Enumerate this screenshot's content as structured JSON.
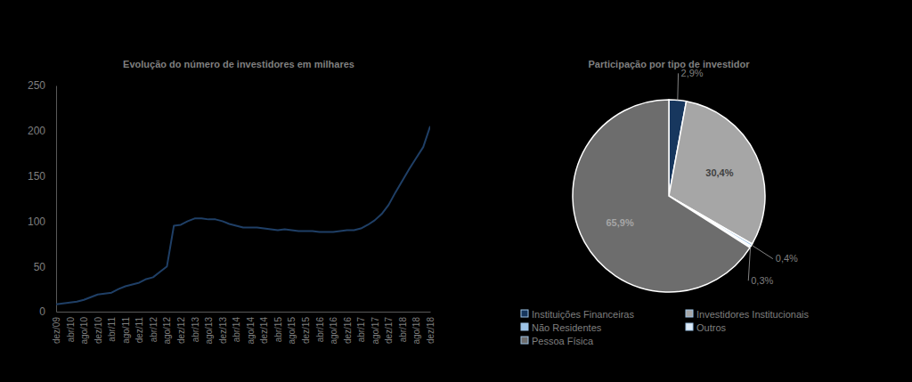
{
  "chart_data": [
    {
      "type": "line",
      "title": "Evolução do número de investidores em milhares",
      "categories": [
        "dez/09",
        null,
        "abr/10",
        null,
        "ago/10",
        null,
        "dez/10",
        null,
        "abr/11",
        null,
        "ago/11",
        null,
        "dez/11",
        null,
        "abr/12",
        null,
        "ago/12",
        null,
        "dez/12",
        null,
        "abr/13",
        null,
        "ago/13",
        null,
        "dez/13",
        null,
        "abr/14",
        null,
        "ago/14",
        null,
        "dez/14",
        null,
        "abr/15",
        null,
        "ago/15",
        null,
        "dez/15",
        null,
        "abr/16",
        null,
        "ago/16",
        null,
        "dez/16",
        null,
        "abr/17",
        null,
        "ago/17",
        null,
        "dez/17",
        null,
        "abr/18",
        null,
        "ago/18",
        null,
        "dez/18"
      ],
      "values": [
        8,
        9,
        10,
        11,
        13,
        16,
        19,
        20,
        21,
        25,
        28,
        30,
        32,
        36,
        38,
        44,
        50,
        95,
        96,
        100,
        103,
        103,
        102,
        102,
        100,
        97,
        95,
        93,
        93,
        93,
        92,
        91,
        90,
        91,
        90,
        89,
        89,
        89,
        88,
        88,
        88,
        89,
        90,
        90,
        92,
        96,
        101,
        108,
        118,
        132,
        145,
        158,
        170,
        182,
        205
      ],
      "color": "#1f3f66",
      "ylim": [
        0,
        250
      ],
      "yticks": [
        0,
        50,
        100,
        150,
        200,
        250
      ]
    },
    {
      "type": "pie",
      "title": "Participação por tipo de investidor",
      "categories": [
        "Instituições Financeiras",
        "Investidores Institucionais",
        "Não Residentes",
        "Outros",
        "Pessoa Física"
      ],
      "values": [
        2.9,
        30.4,
        0.4,
        0.3,
        65.9
      ],
      "value_labels": [
        "2,9%",
        "30,4%",
        "0,4%",
        "0,3%",
        "65,9%"
      ],
      "colors": [
        "#17375e",
        "#a6a6a6",
        "#9dc3e6",
        "#deebf7",
        "#6d6d6d"
      ],
      "data_labels": true,
      "legend": "bottom"
    }
  ]
}
